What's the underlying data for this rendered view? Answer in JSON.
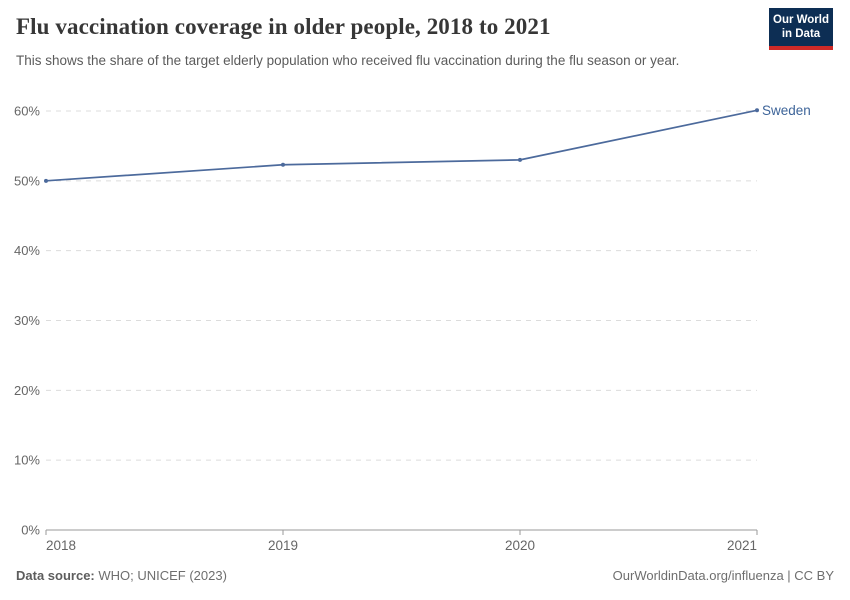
{
  "header": {
    "title": "Flu vaccination coverage in older people, 2018 to 2021",
    "subtitle": "This shows the share of the target elderly population who received flu vaccination during the flu season or year.",
    "logo": {
      "line1": "Our World",
      "line2": "in Data"
    }
  },
  "chart_data": {
    "type": "line",
    "title": "Flu vaccination coverage in older people, 2018 to 2021",
    "x": [
      2018,
      2019,
      2020,
      2021
    ],
    "series": [
      {
        "name": "Sweden",
        "values": [
          50.0,
          52.3,
          53.0,
          60.1
        ],
        "color": "#4c6a9c",
        "label_color": "#3d6499"
      }
    ],
    "ylim": [
      0,
      60
    ],
    "yticks": [
      0,
      10,
      20,
      30,
      40,
      50,
      60
    ],
    "ytick_suffix": "%",
    "grid": "horizontal-dashed",
    "legend_position": "end-of-line-label",
    "xlabel": "",
    "ylabel": ""
  },
  "footer": {
    "source_label": "Data source:",
    "source_value": " WHO; UNICEF (2023)",
    "attribution": "OurWorldinData.org/influenza | CC BY"
  },
  "colors": {
    "line": "#4c6a9c",
    "series_label": "#3d6499",
    "grid": "#dcdcdc",
    "axis": "#9a9a9a",
    "tick_label": "#666666",
    "title": "#373737",
    "subtitle": "#5b5b5b",
    "footer": "#6e6e6e",
    "logo_bg": "#0d2e54",
    "logo_accent": "#cf2a27"
  }
}
